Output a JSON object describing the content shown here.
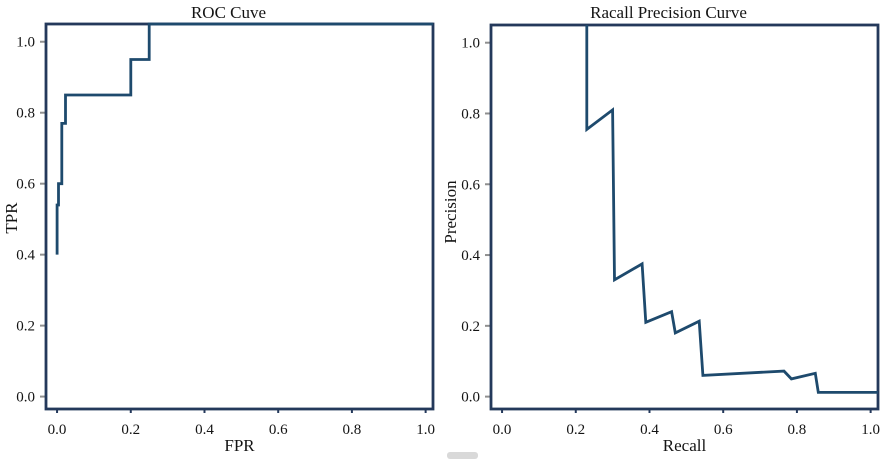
{
  "page": {
    "background": "#ffffff"
  },
  "chart_data": [
    {
      "id": "roc",
      "type": "line",
      "title": "ROC Cuve",
      "xlabel": "FPR",
      "ylabel": "TPR",
      "xlim": [
        -0.03,
        1.02
      ],
      "ylim": [
        -0.035,
        1.05
      ],
      "xticks": [
        0,
        0.2,
        0.4,
        0.6,
        0.8,
        1.0
      ],
      "yticks": [
        0,
        0.2,
        0.4,
        0.6,
        0.8,
        1.0
      ],
      "xtick_labels": [
        "0.0",
        "0.2",
        "0.4",
        "0.6",
        "0.8",
        "1.0"
      ],
      "ytick_labels": [
        "0.0",
        "0.2",
        "0.4",
        "0.6",
        "0.8",
        "1.0"
      ],
      "grid": false,
      "line_color": "#1e4a6d",
      "frame_color": "#24395b",
      "tick_color": "#8f8f8f",
      "text_color": "#141414",
      "points": [
        [
          0.0,
          0.4
        ],
        [
          0.0,
          0.54
        ],
        [
          0.004,
          0.54
        ],
        [
          0.004,
          0.6
        ],
        [
          0.013,
          0.6
        ],
        [
          0.013,
          0.77
        ],
        [
          0.023,
          0.77
        ],
        [
          0.023,
          0.85
        ],
        [
          0.2,
          0.85
        ],
        [
          0.2,
          0.95
        ],
        [
          0.25,
          0.95
        ],
        [
          0.25,
          1.05
        ],
        [
          1.02,
          1.05
        ]
      ]
    },
    {
      "id": "pr",
      "type": "line",
      "title": "Racall Precision Curve",
      "xlabel": "Recall",
      "ylabel": "Precision",
      "xlim": [
        -0.03,
        1.02
      ],
      "ylim": [
        -0.035,
        1.05
      ],
      "xticks": [
        0,
        0.2,
        0.4,
        0.6,
        0.8,
        1.0
      ],
      "yticks": [
        0,
        0.2,
        0.4,
        0.6,
        0.8,
        1.0
      ],
      "xtick_labels": [
        "0.0",
        "0.2",
        "0.4",
        "0.6",
        "0.8",
        "1.0"
      ],
      "ytick_labels": [
        "0.0",
        "0.2",
        "0.4",
        "0.6",
        "0.8",
        "1.0"
      ],
      "grid": false,
      "line_color": "#1e4a6d",
      "frame_color": "#24395b",
      "tick_color": "#8f8f8f",
      "text_color": "#141414",
      "points": [
        [
          0.23,
          1.05
        ],
        [
          0.23,
          0.755
        ],
        [
          0.3,
          0.81
        ],
        [
          0.305,
          0.33
        ],
        [
          0.38,
          0.375
        ],
        [
          0.39,
          0.21
        ],
        [
          0.46,
          0.24
        ],
        [
          0.47,
          0.18
        ],
        [
          0.535,
          0.213
        ],
        [
          0.545,
          0.06
        ],
        [
          0.765,
          0.072
        ],
        [
          0.785,
          0.05
        ],
        [
          0.85,
          0.066
        ],
        [
          0.858,
          0.012
        ],
        [
          1.02,
          0.012
        ]
      ]
    }
  ],
  "artifact": {
    "color": "#d9d9d9"
  }
}
